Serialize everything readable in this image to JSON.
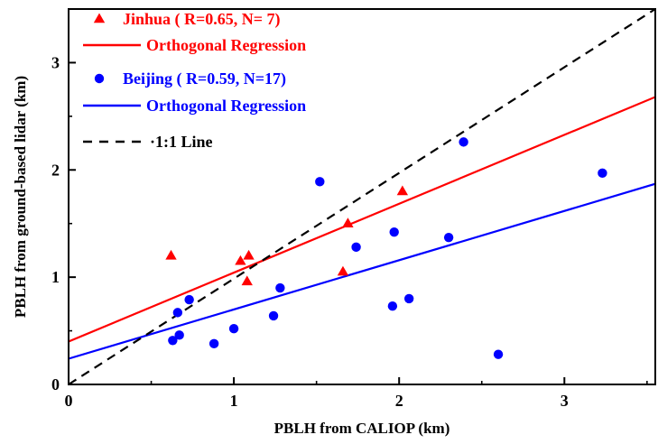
{
  "colors": {
    "jinhua": "#ff0000",
    "beijing": "#0000ff",
    "one_to_one": "#000000"
  },
  "chart_data": {
    "type": "scatter",
    "xlabel": "PBLH from CALIOP (km)",
    "ylabel": "PBLH from ground-based lidar (km)",
    "xlim": [
      0,
      3.55
    ],
    "ylim": [
      0,
      3.5
    ],
    "xticks": [
      "0",
      "1",
      "2",
      "3"
    ],
    "yticks": [
      "0",
      "1",
      "2",
      "3"
    ],
    "grid": false,
    "legend_position": "top-left",
    "series": [
      {
        "name": "Jinhua ( R=0.65, N= 7)",
        "marker": "triangle",
        "color": "#ff0000",
        "points": [
          [
            0.62,
            1.2
          ],
          [
            1.04,
            1.15
          ],
          [
            1.09,
            1.2
          ],
          [
            1.08,
            0.96
          ],
          [
            1.69,
            1.5
          ],
          [
            1.66,
            1.05
          ],
          [
            2.02,
            1.8
          ]
        ]
      },
      {
        "name": "Beijing ( R=0.59, N=17)",
        "marker": "circle",
        "color": "#0000ff",
        "points": [
          [
            0.63,
            0.41
          ],
          [
            0.66,
            0.67
          ],
          [
            0.67,
            0.46
          ],
          [
            0.73,
            0.79
          ],
          [
            0.88,
            0.38
          ],
          [
            1.0,
            0.52
          ],
          [
            1.24,
            0.64
          ],
          [
            1.28,
            0.9
          ],
          [
            1.52,
            1.89
          ],
          [
            1.74,
            1.28
          ],
          [
            1.96,
            0.73
          ],
          [
            1.97,
            1.42
          ],
          [
            2.06,
            0.8
          ],
          [
            2.3,
            1.37
          ],
          [
            2.39,
            2.26
          ],
          [
            2.6,
            0.28
          ],
          [
            3.23,
            1.97
          ]
        ]
      }
    ],
    "lines": [
      {
        "name": "Orthogonal Regression",
        "color": "#ff0000",
        "style": "solid",
        "x": [
          0,
          3.55
        ],
        "y": [
          0.4,
          2.68
        ]
      },
      {
        "name": "Orthogonal Regression",
        "color": "#0000ff",
        "style": "solid",
        "x": [
          0,
          3.55
        ],
        "y": [
          0.24,
          1.87
        ]
      },
      {
        "name": "1:1 Line",
        "color": "#000000",
        "style": "dashed",
        "x": [
          0,
          3.55
        ],
        "y": [
          0,
          3.5
        ]
      }
    ],
    "legend": [
      {
        "label": "Jinhua ( R=0.65, N= 7)",
        "symbol": "triangle",
        "color": "#ff0000"
      },
      {
        "label": "Orthogonal Regression",
        "symbol": "line",
        "color": "#ff0000"
      },
      {
        "label": "Beijing ( R=0.59, N=17)",
        "symbol": "circle",
        "color": "#0000ff"
      },
      {
        "label": "Orthogonal Regression",
        "symbol": "line",
        "color": "#0000ff"
      },
      {
        "label": "·1:1 Line",
        "symbol": "dashed-line",
        "color": "#000000"
      }
    ]
  }
}
